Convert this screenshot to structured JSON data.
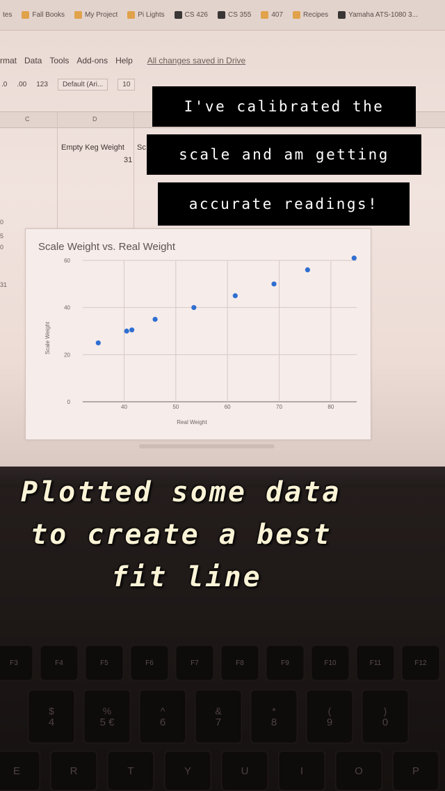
{
  "browser": {
    "bookmarks": [
      {
        "label": "tes",
        "icon": "folder-icon"
      },
      {
        "label": "Fall Books",
        "icon": "folder-icon"
      },
      {
        "label": "My Project",
        "icon": "folder-icon"
      },
      {
        "label": "Pi Lights",
        "icon": "folder-icon"
      },
      {
        "label": "CS 426",
        "icon": "p-logo-icon"
      },
      {
        "label": "CS 355",
        "icon": "p-logo-icon"
      },
      {
        "label": "407",
        "icon": "folder-icon"
      },
      {
        "label": "Recipes",
        "icon": "folder-icon"
      },
      {
        "label": "Yamaha ATS-1080 3...",
        "icon": "site-icon"
      }
    ]
  },
  "sheets": {
    "menu": [
      "rmat",
      "Data",
      "Tools",
      "Add-ons",
      "Help"
    ],
    "saved_status": "All changes saved in Drive",
    "toolbar": {
      "decimal_less": ".0",
      "decimal_more": ".00",
      "number_format": "123",
      "font": "Default (Ari...",
      "font_size": "10"
    },
    "columns": [
      "C",
      "D"
    ],
    "cells": {
      "d_label": "Empty Keg Weight",
      "d_value": "31",
      "e_partial": "Sc",
      "left_value": "31"
    },
    "row_fragments": [
      "0",
      "5",
      "0"
    ]
  },
  "chart_data": {
    "type": "scatter",
    "title": "Scale Weight vs. Real Weight",
    "xlabel": "Real Weight",
    "ylabel": "Scale Weight",
    "xlim": [
      32,
      85
    ],
    "ylim": [
      0,
      60
    ],
    "x_ticks": [
      40,
      50,
      60,
      70,
      80
    ],
    "y_ticks": [
      0,
      20,
      40,
      60
    ],
    "grid": true,
    "point_color": "#2f6fd1",
    "points": [
      {
        "x": 35,
        "y": 25
      },
      {
        "x": 40.5,
        "y": 30
      },
      {
        "x": 41.5,
        "y": 30.5
      },
      {
        "x": 46,
        "y": 35
      },
      {
        "x": 53.5,
        "y": 40
      },
      {
        "x": 61.5,
        "y": 45
      },
      {
        "x": 69,
        "y": 50
      },
      {
        "x": 75.5,
        "y": 56
      },
      {
        "x": 84.5,
        "y": 61
      }
    ]
  },
  "captions": {
    "box_lines": [
      "I've calibrated the",
      "scale and am getting",
      "accurate readings!"
    ],
    "big_lines": [
      "Plotted some data",
      "to create a best",
      "fit line"
    ]
  },
  "keyboard": {
    "fn_keys": [
      "F3",
      "F4",
      "F5",
      "F6",
      "F7",
      "F8",
      "F9",
      "F10",
      "F11",
      "F12"
    ],
    "symbol_keys": [
      {
        "top": "$",
        "bottom": "4"
      },
      {
        "top": "%",
        "bottom": "5 €"
      },
      {
        "top": "^",
        "bottom": "6"
      },
      {
        "top": "&",
        "bottom": "7"
      },
      {
        "top": "*",
        "bottom": "8"
      },
      {
        "top": "(",
        "bottom": "9"
      },
      {
        "top": ")",
        "bottom": "0"
      }
    ],
    "letter_keys": [
      "E",
      "R",
      "T",
      "Y",
      "U",
      "I",
      "O",
      "P"
    ]
  }
}
